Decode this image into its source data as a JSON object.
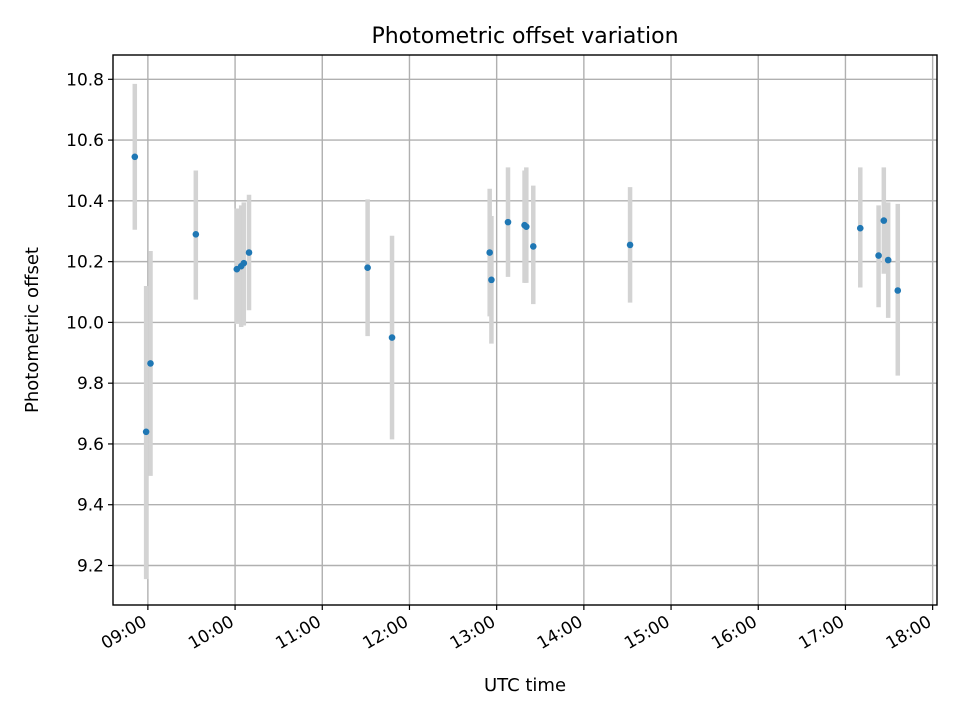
{
  "chart_data": {
    "type": "scatter",
    "title": "Photometric offset variation",
    "xlabel": "UTC time",
    "ylabel": "Photometric offset",
    "x_unit": "hours",
    "xlim": [
      8.6,
      18.05
    ],
    "ylim": [
      9.07,
      10.88
    ],
    "xticks": [
      {
        "value": 9,
        "label": "09:00"
      },
      {
        "value": 10,
        "label": "10:00"
      },
      {
        "value": 11,
        "label": "11:00"
      },
      {
        "value": 12,
        "label": "12:00"
      },
      {
        "value": 13,
        "label": "13:00"
      },
      {
        "value": 14,
        "label": "14:00"
      },
      {
        "value": 15,
        "label": "15:00"
      },
      {
        "value": 16,
        "label": "16:00"
      },
      {
        "value": 17,
        "label": "17:00"
      },
      {
        "value": 18,
        "label": "18:00"
      }
    ],
    "yticks": [
      {
        "value": 9.2,
        "label": "9.2"
      },
      {
        "value": 9.4,
        "label": "9.4"
      },
      {
        "value": 9.6,
        "label": "9.6"
      },
      {
        "value": 9.8,
        "label": "9.8"
      },
      {
        "value": 10.0,
        "label": "10.0"
      },
      {
        "value": 10.2,
        "label": "10.2"
      },
      {
        "value": 10.4,
        "label": "10.4"
      },
      {
        "value": 10.6,
        "label": "10.6"
      },
      {
        "value": 10.8,
        "label": "10.8"
      }
    ],
    "grid": true,
    "marker_color": "#1f77b4",
    "errorbar_color": "#d3d3d3",
    "points": [
      {
        "x": 8.85,
        "y": 10.545,
        "lo": 10.305,
        "hi": 10.785
      },
      {
        "x": 8.98,
        "y": 9.64,
        "lo": 9.155,
        "hi": 10.12
      },
      {
        "x": 9.03,
        "y": 9.865,
        "lo": 9.495,
        "hi": 10.235
      },
      {
        "x": 9.55,
        "y": 10.29,
        "lo": 10.075,
        "hi": 10.5
      },
      {
        "x": 10.02,
        "y": 10.175,
        "lo": 9.995,
        "hi": 10.375
      },
      {
        "x": 10.07,
        "y": 10.185,
        "lo": 9.985,
        "hi": 10.385
      },
      {
        "x": 10.1,
        "y": 10.195,
        "lo": 9.99,
        "hi": 10.395
      },
      {
        "x": 10.16,
        "y": 10.23,
        "lo": 10.04,
        "hi": 10.42
      },
      {
        "x": 11.52,
        "y": 10.18,
        "lo": 9.955,
        "hi": 10.405
      },
      {
        "x": 11.8,
        "y": 9.95,
        "lo": 9.615,
        "hi": 10.285
      },
      {
        "x": 12.92,
        "y": 10.23,
        "lo": 10.02,
        "hi": 10.44
      },
      {
        "x": 12.94,
        "y": 10.14,
        "lo": 9.93,
        "hi": 10.35
      },
      {
        "x": 13.13,
        "y": 10.33,
        "lo": 10.15,
        "hi": 10.51
      },
      {
        "x": 13.32,
        "y": 10.32,
        "lo": 10.13,
        "hi": 10.5
      },
      {
        "x": 13.34,
        "y": 10.315,
        "lo": 10.13,
        "hi": 10.51
      },
      {
        "x": 13.42,
        "y": 10.25,
        "lo": 10.06,
        "hi": 10.45
      },
      {
        "x": 14.53,
        "y": 10.255,
        "lo": 10.065,
        "hi": 10.445
      },
      {
        "x": 17.17,
        "y": 10.31,
        "lo": 10.115,
        "hi": 10.51
      },
      {
        "x": 17.38,
        "y": 10.22,
        "lo": 10.05,
        "hi": 10.385
      },
      {
        "x": 17.44,
        "y": 10.335,
        "lo": 10.16,
        "hi": 10.51
      },
      {
        "x": 17.49,
        "y": 10.205,
        "lo": 10.015,
        "hi": 10.395
      },
      {
        "x": 17.6,
        "y": 10.105,
        "lo": 9.825,
        "hi": 10.39
      }
    ]
  }
}
